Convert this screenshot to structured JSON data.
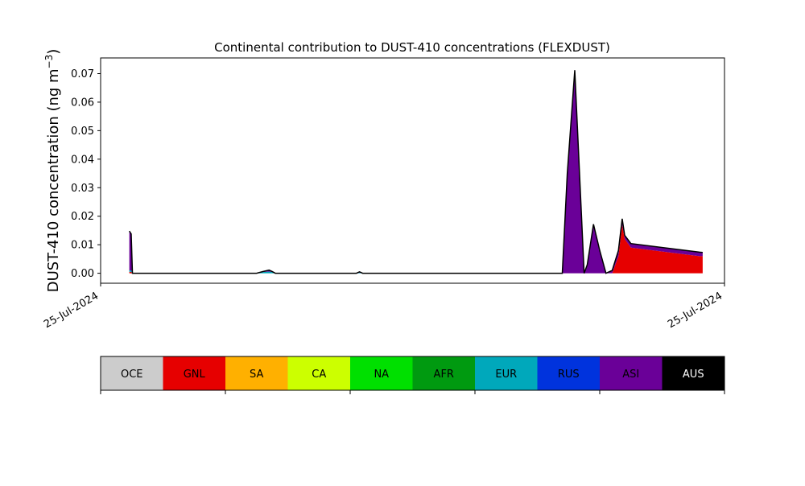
{
  "chart_data": {
    "type": "area",
    "title": "Continental contribution to DUST-410 concentrations (FLEXDUST)",
    "ylabel": "DUST-410 concentration (ng m",
    "ylabel_sup": "−3",
    "ylabel_close": ")",
    "ylim": [
      -0.0035,
      0.0755
    ],
    "yticks": [
      0.0,
      0.01,
      0.02,
      0.03,
      0.04,
      0.05,
      0.06,
      0.07
    ],
    "ytick_labels": [
      "0.00",
      "0.01",
      "0.02",
      "0.03",
      "0.04",
      "0.05",
      "0.06",
      "0.07"
    ],
    "xtick_labels": [
      "25-Jul-2024",
      "25-Jul-2024"
    ],
    "xlim": [
      0,
      100
    ],
    "x": [
      4.6,
      4.9,
      5.1,
      25,
      26,
      27,
      27.5,
      28,
      29,
      41,
      41.5,
      42,
      74,
      74.8,
      76,
      77.5,
      78,
      79,
      80,
      81,
      82,
      83,
      83.6,
      84,
      85,
      96,
      96.5
    ],
    "series": [
      {
        "name": "OCE",
        "values": [
          0,
          0,
          0,
          0,
          0,
          0,
          0,
          0,
          0,
          0,
          0,
          0,
          0,
          0,
          0,
          0,
          0,
          0,
          0,
          0,
          0,
          0,
          0,
          0,
          0,
          0,
          0
        ]
      },
      {
        "name": "GNL",
        "values": [
          0.0005,
          0.0005,
          0,
          0,
          0,
          0,
          0,
          0,
          0,
          0,
          0,
          0,
          0,
          0,
          0,
          0,
          0,
          0,
          0,
          0,
          0,
          0.006,
          0.017,
          0.012,
          0.009,
          0.006,
          0.006
        ]
      },
      {
        "name": "SA",
        "values": [
          0,
          0,
          0,
          0,
          0,
          0,
          0,
          0,
          0,
          0,
          0,
          0,
          0,
          0,
          0,
          0,
          0,
          0,
          0,
          0,
          0,
          0,
          0,
          0,
          0,
          0,
          0
        ]
      },
      {
        "name": "CA",
        "values": [
          0,
          0,
          0,
          0,
          0,
          0,
          0,
          0,
          0,
          0,
          0,
          0,
          0,
          0,
          0,
          0,
          0,
          0,
          0,
          0,
          0,
          0,
          0,
          0,
          0,
          0,
          0
        ]
      },
      {
        "name": "NA",
        "values": [
          0,
          0,
          0,
          0,
          0,
          0,
          0,
          0,
          0,
          0,
          0,
          0,
          0,
          0,
          0,
          0,
          0,
          0,
          0,
          0,
          0,
          0,
          0,
          0,
          0,
          0,
          0
        ]
      },
      {
        "name": "AFR",
        "values": [
          0,
          0,
          0,
          0,
          0,
          0,
          0,
          0,
          0,
          0,
          0,
          0,
          0,
          0,
          0,
          0,
          0,
          0,
          0,
          0,
          0,
          0,
          0,
          0,
          0,
          0,
          0
        ]
      },
      {
        "name": "EUR",
        "values": [
          0.0005,
          0.0005,
          0,
          0,
          0.0004,
          0.0006,
          0.0004,
          0,
          0,
          0,
          0.0002,
          0,
          0,
          0,
          0,
          0,
          0,
          0,
          0,
          0,
          0,
          0,
          0,
          0,
          0,
          0,
          0
        ]
      },
      {
        "name": "RUS",
        "values": [
          0,
          0,
          0,
          0,
          0,
          0,
          0,
          0,
          0,
          0,
          0,
          0,
          0,
          0,
          0,
          0,
          0,
          0,
          0,
          0,
          0,
          0,
          0,
          0,
          0,
          0,
          0
        ]
      },
      {
        "name": "ASI",
        "values": [
          0.0138,
          0.0128,
          0,
          0,
          0.0002,
          0.0005,
          0.0002,
          0,
          0,
          0,
          0.0003,
          0,
          0,
          0.035,
          0.0712,
          0,
          0.003,
          0.0172,
          0.008,
          0,
          0.001,
          0.002,
          0.0021,
          0.0013,
          0.0014,
          0.0014,
          0.0013
        ]
      },
      {
        "name": "AUS",
        "values": [
          0,
          0,
          0,
          0,
          0,
          0,
          0,
          0,
          0,
          0,
          0,
          0,
          0,
          0,
          0,
          0,
          0,
          0,
          0,
          0,
          0,
          0,
          0,
          0,
          0,
          0,
          0
        ]
      }
    ],
    "legend_placement": "bottom colorbar",
    "grid": false
  },
  "colors": {
    "OCE": "#cccccc",
    "GNL": "#e60000",
    "SA": "#ffb000",
    "CA": "#ccff00",
    "NA": "#00e000",
    "AFR": "#009a10",
    "EUR": "#00a8bb",
    "RUS": "#0033dd",
    "ASI": "#6a0098",
    "AUS": "#000000"
  },
  "legend_text_colors": {
    "OCE": "#000000",
    "GNL": "#000000",
    "SA": "#000000",
    "CA": "#000000",
    "NA": "#000000",
    "AFR": "#000000",
    "EUR": "#000000",
    "RUS": "#000000",
    "ASI": "#000000",
    "AUS": "#ffffff"
  }
}
